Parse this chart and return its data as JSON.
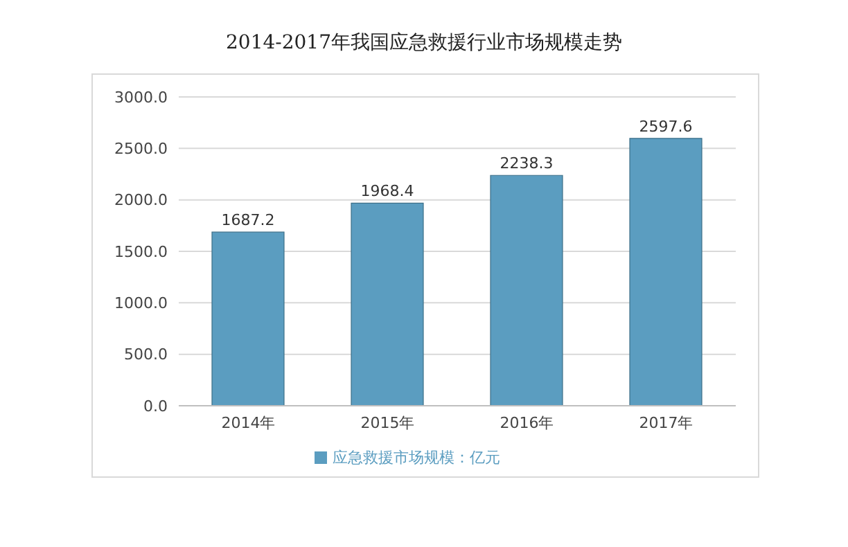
{
  "chart_data": {
    "type": "bar",
    "title": "2014-2017年我国应急救援行业市场规模走势",
    "categories": [
      "2014年",
      "2015年",
      "2016年",
      "2017年"
    ],
    "series": [
      {
        "name": "应急救援市场规模：亿元",
        "color": "#5b9dc0",
        "values": [
          1687.2,
          1968.4,
          2238.3,
          2597.6
        ]
      }
    ],
    "ylim": [
      0,
      3000
    ],
    "yticks": [
      {
        "value": 0,
        "label": "0.0"
      },
      {
        "value": 500,
        "label": "500.0"
      },
      {
        "value": 1000,
        "label": "1000.0"
      },
      {
        "value": 1500,
        "label": "1500.0"
      },
      {
        "value": 2000,
        "label": "2000.0"
      },
      {
        "value": 2500,
        "label": "2500.0"
      },
      {
        "value": 3000,
        "label": "3000.0"
      }
    ],
    "grid": "y",
    "legend": "bottom",
    "data_labels": true
  }
}
